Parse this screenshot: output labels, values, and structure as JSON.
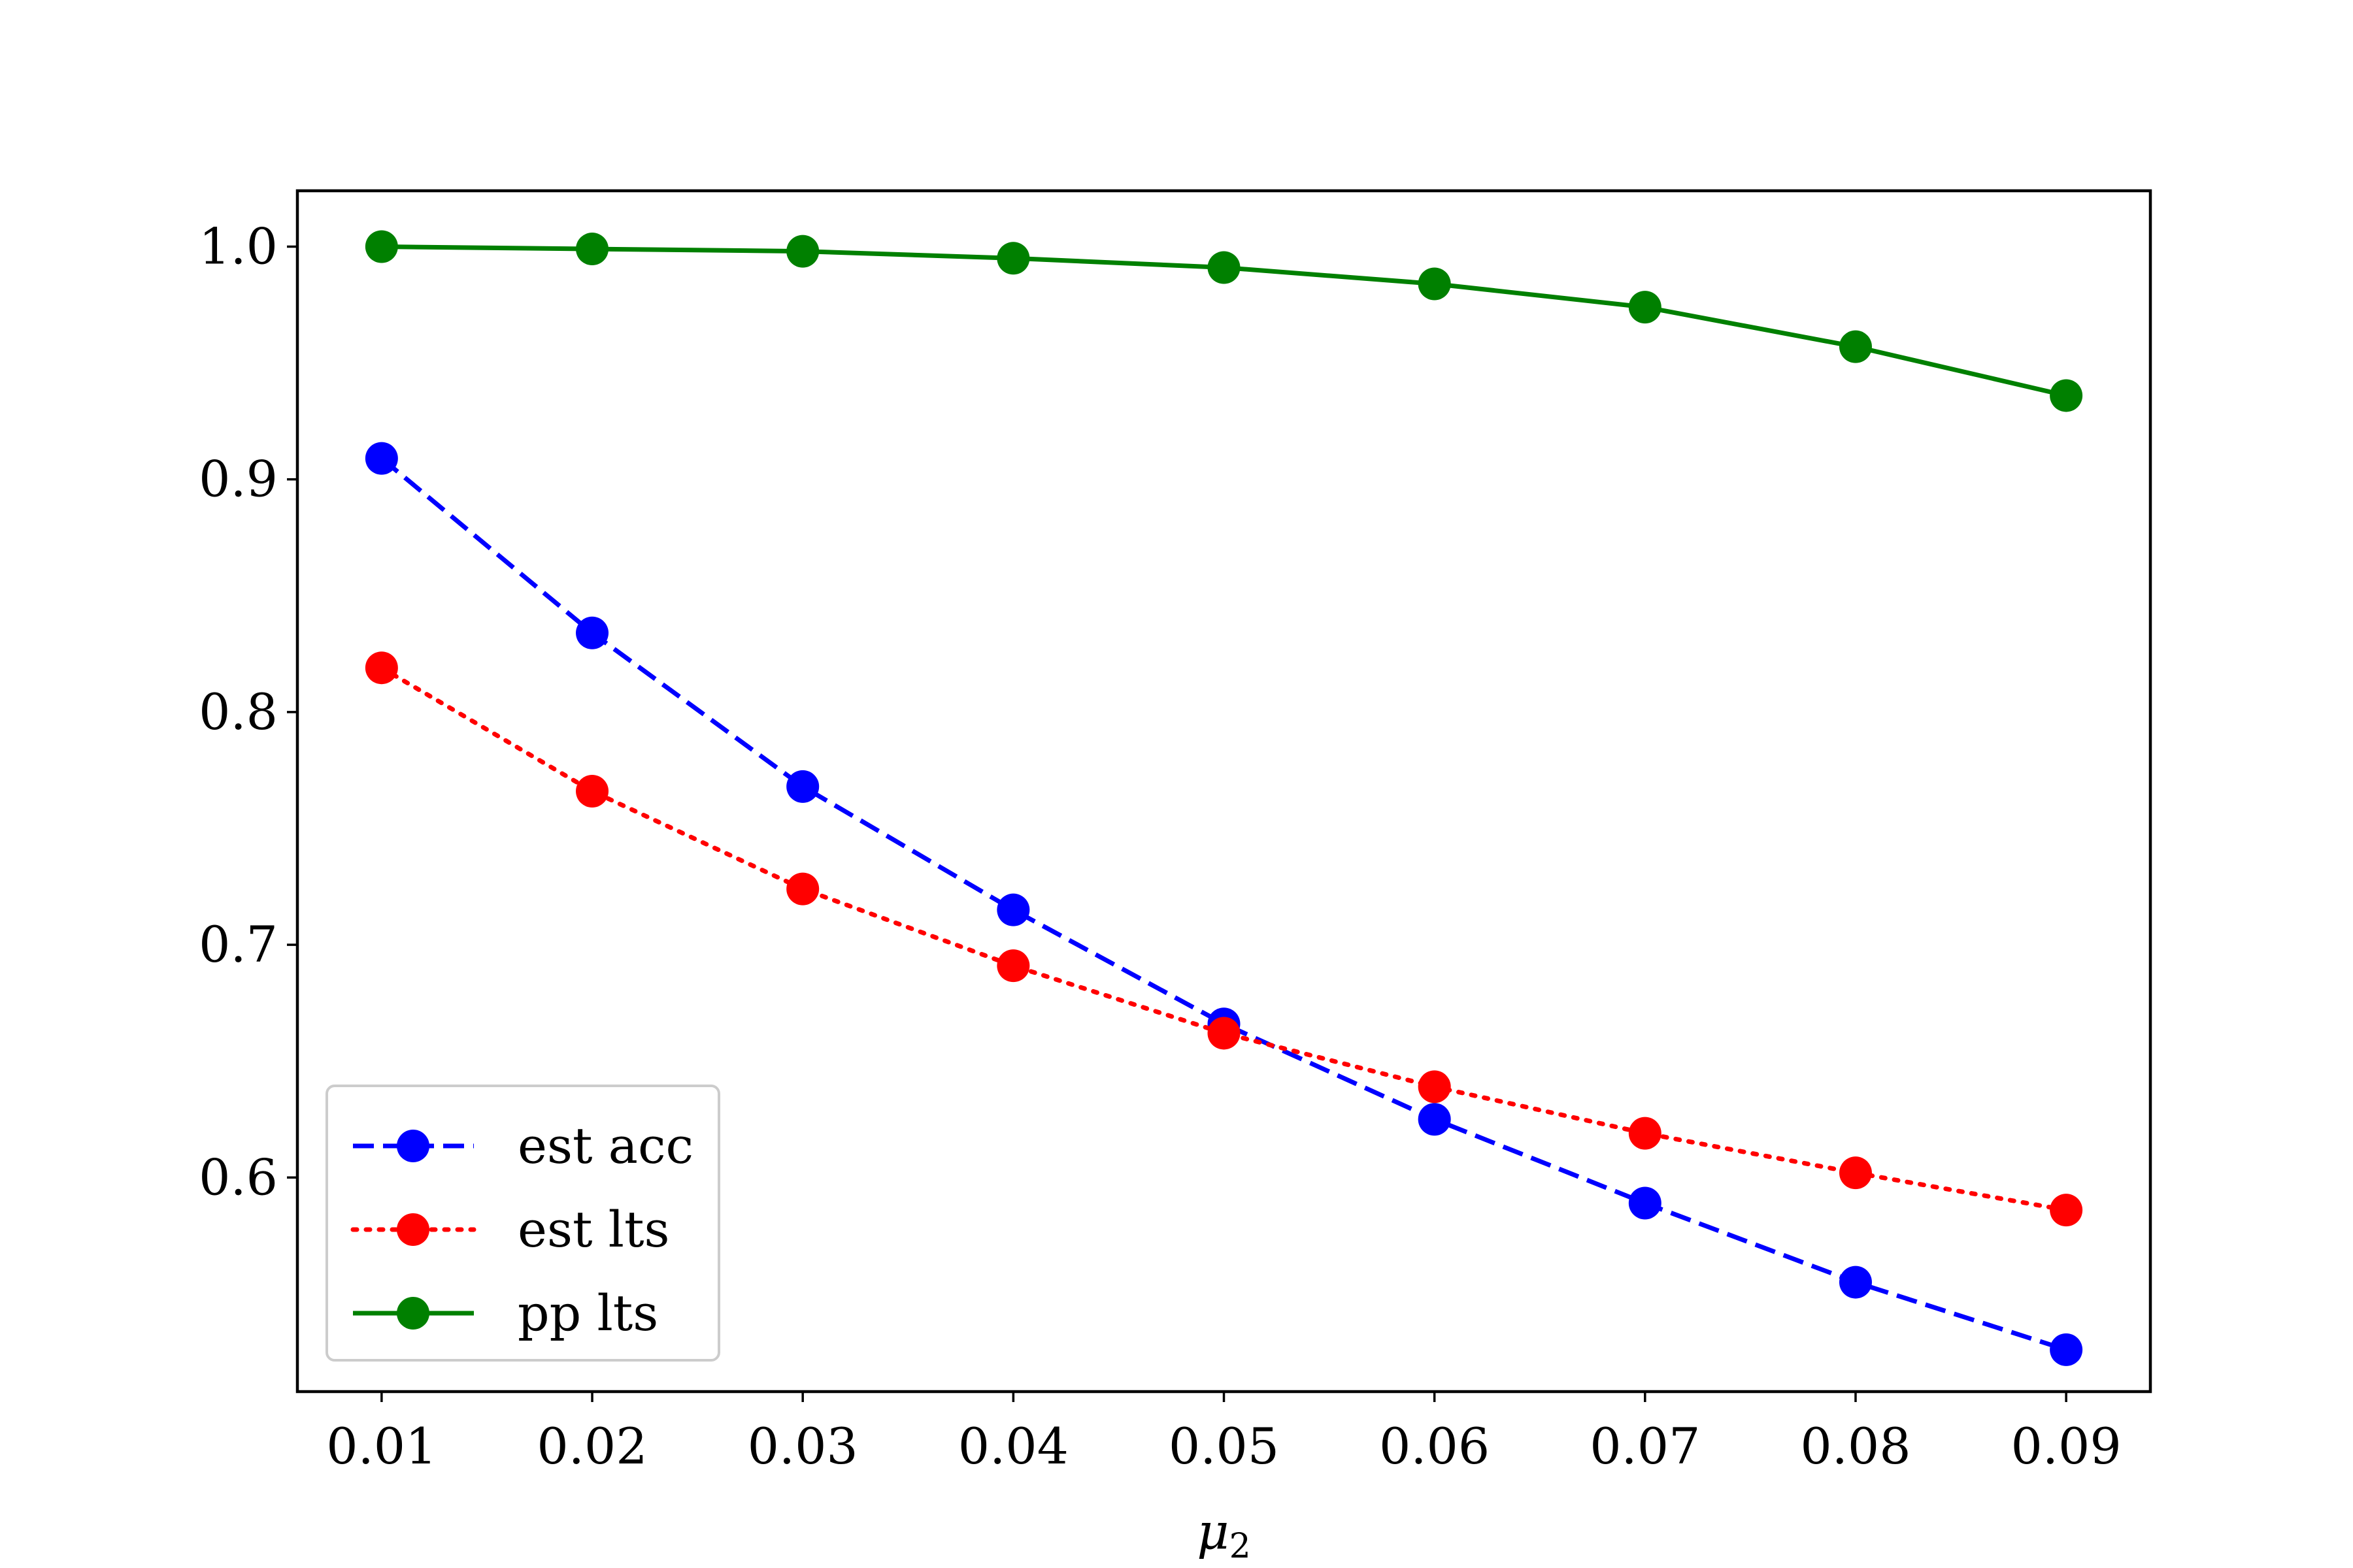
{
  "chart_data": {
    "type": "line",
    "title": "",
    "xlabel": "μ",
    "xlabel_subscript": "2",
    "ylabel": "",
    "x": [
      0.01,
      0.02,
      0.03,
      0.04,
      0.05,
      0.06,
      0.07,
      0.08,
      0.09
    ],
    "x_tick_labels": [
      "0.01",
      "0.02",
      "0.03",
      "0.04",
      "0.05",
      "0.06",
      "0.07",
      "0.08",
      "0.09"
    ],
    "y_ticks": [
      0.6,
      0.7,
      0.8,
      0.9,
      1.0
    ],
    "y_tick_labels": [
      "0.6",
      "0.7",
      "0.8",
      "0.9",
      "1.0"
    ],
    "xlim": [
      0.006,
      0.094
    ],
    "ylim": [
      0.508,
      1.024
    ],
    "grid": false,
    "legend_position": "lower-left",
    "series": [
      {
        "name": "est acc",
        "color": "#0000ff",
        "line_style": "dashed",
        "marker": "circle",
        "values": [
          0.909,
          0.834,
          0.768,
          0.715,
          0.666,
          0.625,
          0.589,
          0.555,
          0.526
        ]
      },
      {
        "name": "est lts",
        "color": "#ff0000",
        "line_style": "dotted",
        "marker": "circle",
        "values": [
          0.819,
          0.766,
          0.724,
          0.691,
          0.662,
          0.639,
          0.619,
          0.602,
          0.586
        ]
      },
      {
        "name": "pp lts",
        "color": "#008000",
        "line_style": "solid",
        "marker": "circle",
        "values": [
          1.0,
          0.999,
          0.998,
          0.995,
          0.991,
          0.984,
          0.974,
          0.957,
          0.936
        ]
      }
    ]
  }
}
